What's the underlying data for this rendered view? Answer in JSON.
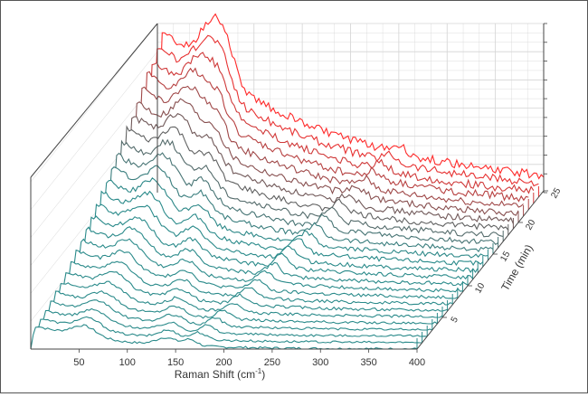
{
  "chart_data": {
    "type": "line",
    "style": "3D waterfall",
    "title": "",
    "xlabel": "Raman Shift (cm",
    "xlabel_sup": "-1",
    "xlabel_close": ")",
    "zlabel": "Time (min)",
    "xlim": [
      0,
      400
    ],
    "zlim": [
      0,
      25
    ],
    "x_ticks": [
      "50",
      "100",
      "150",
      "200",
      "250",
      "300",
      "350",
      "400"
    ],
    "z_ticks": [
      "5",
      "10",
      "15",
      "20",
      "25"
    ],
    "grid": true,
    "series_count": 26,
    "colors": {
      "early": "#2a8a8a",
      "mid": "#6a5a5a",
      "late": "#ff2a2a",
      "grid": "#d4d4d4",
      "axis": "#444444"
    },
    "features": {
      "fluorescence_peak_x": 8,
      "emerging_peak_x": 55,
      "moving_peak_x_start": 140,
      "moving_peak_x_end": 70,
      "band_peak_x_start": 165,
      "band_peak_x_end": 250
    }
  }
}
